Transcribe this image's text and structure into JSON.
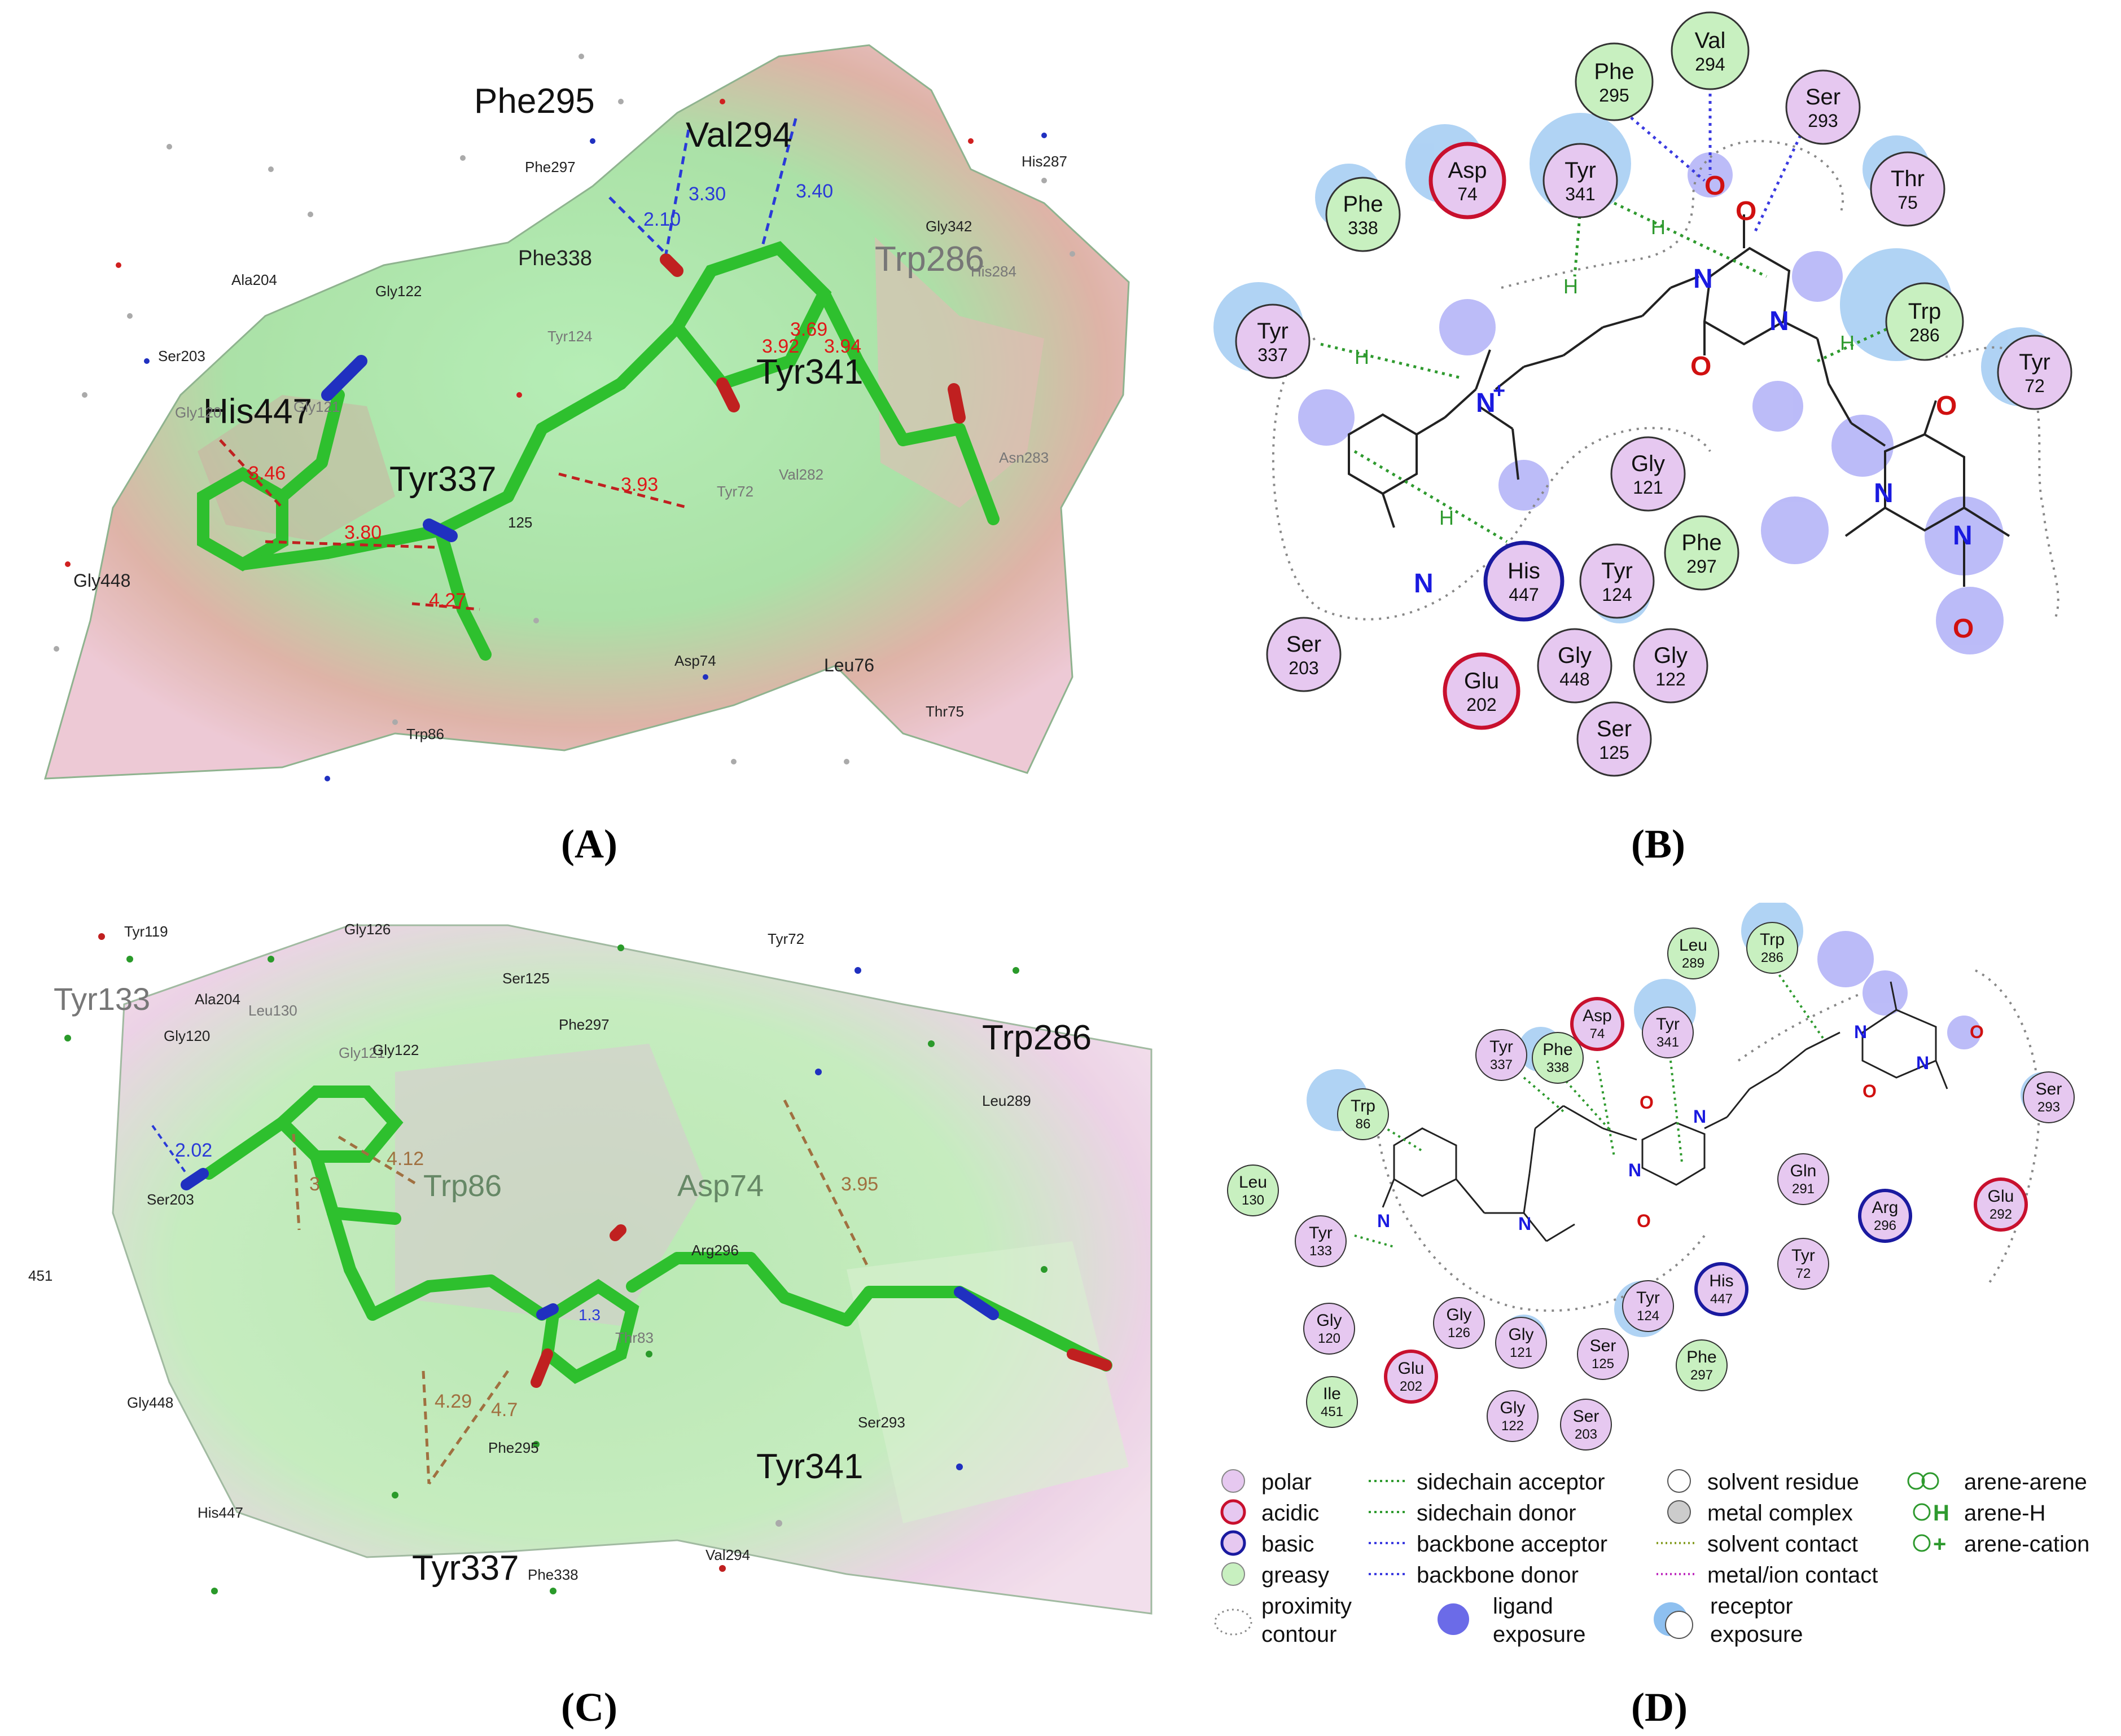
{
  "panels": {
    "A": "(A)",
    "B": "(B)",
    "C": "(C)",
    "D": "(D)"
  },
  "panel_a": {
    "big_labels": [
      "Phe295",
      "Val294",
      "His447",
      "Tyr337",
      "Tyr341"
    ],
    "faint_big_labels": [
      "Trp286"
    ],
    "small_labels": [
      "Phe297",
      "His287",
      "Gly342",
      "Phe338",
      "His284",
      "Ala204",
      "Gly122",
      "Tyr124",
      "Ser203",
      "Gly121",
      "Gly120",
      "Val282",
      "Tyr72",
      "Asn283",
      "Gly448",
      "Asp74",
      "Leu76",
      "Thr75",
      "Trp86",
      "125"
    ],
    "distances_blue": [
      "3.30",
      "3.40",
      "2.10"
    ],
    "distances_red": [
      "3.46",
      "3.80",
      "3.93",
      "4.27",
      "3.92",
      "3.94",
      "3.69"
    ]
  },
  "panel_b": {
    "residues": [
      {
        "name": "Phe",
        "num": "295",
        "type": "greasy"
      },
      {
        "name": "Val",
        "num": "294",
        "type": "greasy"
      },
      {
        "name": "Ser",
        "num": "293",
        "type": "polar"
      },
      {
        "name": "Asp",
        "num": "74",
        "type": "acidic"
      },
      {
        "name": "Tyr",
        "num": "341",
        "type": "polar"
      },
      {
        "name": "Thr",
        "num": "75",
        "type": "polar"
      },
      {
        "name": "Phe",
        "num": "338",
        "type": "greasy"
      },
      {
        "name": "Tyr",
        "num": "337",
        "type": "polar"
      },
      {
        "name": "Trp",
        "num": "286",
        "type": "greasy"
      },
      {
        "name": "Tyr",
        "num": "72",
        "type": "polar"
      },
      {
        "name": "Gly",
        "num": "121",
        "type": "polar"
      },
      {
        "name": "His",
        "num": "447",
        "type": "basic"
      },
      {
        "name": "Tyr",
        "num": "124",
        "type": "polar"
      },
      {
        "name": "Phe",
        "num": "297",
        "type": "greasy"
      },
      {
        "name": "Ser",
        "num": "203",
        "type": "polar"
      },
      {
        "name": "Glu",
        "num": "202",
        "type": "acidic"
      },
      {
        "name": "Gly",
        "num": "448",
        "type": "polar"
      },
      {
        "name": "Gly",
        "num": "122",
        "type": "polar"
      },
      {
        "name": "Ser",
        "num": "125",
        "type": "polar"
      }
    ],
    "atoms": {
      "n_plus": "N",
      "plus": "+",
      "cn": "N",
      "o": "O",
      "n": "N",
      "h": "H"
    }
  },
  "panel_c": {
    "big_labels": [
      "Tyr133",
      "Trp286",
      "Trp86",
      "Asp74",
      "Tyr341",
      "Tyr337"
    ],
    "small_labels": [
      "Tyr119",
      "Gly126",
      "Tyr72",
      "Ser125",
      "Ala204",
      "Gly120",
      "Leu130",
      "Gly121",
      "Gly122",
      "Phe297",
      "Leu289",
      "Ser203",
      "451",
      "Arg296",
      "Thr83",
      "Gly448",
      "Phe295",
      "Ser293",
      "His447",
      "Phe338",
      "Val294"
    ],
    "distances_blue": [
      "2.02"
    ],
    "distances_other": [
      "4.12",
      "3.95",
      "4.29",
      "4.7",
      "1.3",
      "3"
    ]
  },
  "panel_d": {
    "residues": [
      {
        "name": "Leu",
        "num": "289",
        "type": "greasy"
      },
      {
        "name": "Trp",
        "num": "286",
        "type": "greasy"
      },
      {
        "name": "Tyr",
        "num": "337",
        "type": "polar"
      },
      {
        "name": "Phe",
        "num": "338",
        "type": "greasy"
      },
      {
        "name": "Asp",
        "num": "74",
        "type": "acidic"
      },
      {
        "name": "Tyr",
        "num": "341",
        "type": "polar"
      },
      {
        "name": "Trp",
        "num": "86",
        "type": "greasy"
      },
      {
        "name": "Ser",
        "num": "293",
        "type": "polar"
      },
      {
        "name": "Leu",
        "num": "130",
        "type": "greasy"
      },
      {
        "name": "Gln",
        "num": "291",
        "type": "polar"
      },
      {
        "name": "Tyr",
        "num": "133",
        "type": "polar"
      },
      {
        "name": "Arg",
        "num": "296",
        "type": "basic"
      },
      {
        "name": "Glu",
        "num": "292",
        "type": "acidic"
      },
      {
        "name": "Tyr",
        "num": "72",
        "type": "polar"
      },
      {
        "name": "Gly",
        "num": "120",
        "type": "polar"
      },
      {
        "name": "Gly",
        "num": "126",
        "type": "polar"
      },
      {
        "name": "Gly",
        "num": "121",
        "type": "polar"
      },
      {
        "name": "Tyr",
        "num": "124",
        "type": "polar"
      },
      {
        "name": "His",
        "num": "447",
        "type": "basic"
      },
      {
        "name": "Ser",
        "num": "125",
        "type": "polar"
      },
      {
        "name": "Phe",
        "num": "297",
        "type": "greasy"
      },
      {
        "name": "Glu",
        "num": "202",
        "type": "acidic"
      },
      {
        "name": "Ile",
        "num": "451",
        "type": "greasy"
      },
      {
        "name": "Gly",
        "num": "122",
        "type": "polar"
      },
      {
        "name": "Ser",
        "num": "203",
        "type": "polar"
      }
    ]
  },
  "legend": {
    "col1": [
      "polar",
      "acidic",
      "basic",
      "greasy",
      "proximity",
      "contour"
    ],
    "col2": [
      "sidechain acceptor",
      "sidechain donor",
      "backbone acceptor",
      "backbone donor",
      "ligand",
      "exposure"
    ],
    "col3": [
      "solvent residue",
      "metal complex",
      "solvent contact",
      "metal/ion contact",
      "receptor",
      "exposure"
    ],
    "col4": [
      "arene-arene",
      "arene-H",
      "arene-cation"
    ]
  },
  "colors": {
    "polar": "#e6c8f0",
    "acidic_border": "#c8102e",
    "basic_border": "#1a1aa0",
    "greasy": "#c8f0c0",
    "hbond_green": "#2e9a2e",
    "hbond_blue": "#3a3ae0",
    "exposure_blue": "#5a9ef0",
    "ligand_blue": "#3a3ae0",
    "surface_green": "#7ad87a",
    "stick_green": "#2ec02e"
  }
}
